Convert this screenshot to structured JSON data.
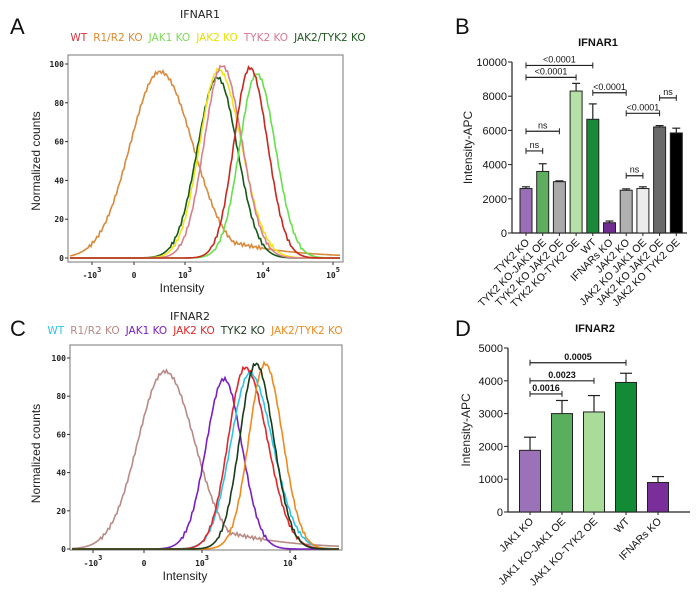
{
  "panels": {
    "a": "A",
    "b": "B",
    "c": "C",
    "d": "D"
  },
  "chart_data": [
    {
      "id": "A",
      "type": "line",
      "title": "IFNAR1",
      "xlabel": "Intensity",
      "ylabel": "Normalized counts",
      "ylim": [
        0,
        100
      ],
      "yticks": [
        "0",
        "20",
        "40",
        "60",
        "80",
        "100"
      ],
      "xticks": [
        {
          "base": "-10",
          "exp": "3"
        },
        {
          "base": "0",
          "exp": ""
        },
        {
          "base": "10",
          "exp": "3"
        },
        {
          "base": "10",
          "exp": "4"
        },
        {
          "base": "10",
          "exp": "5"
        }
      ],
      "x_scale": "biexponential",
      "legend_position": "top",
      "series": [
        {
          "name": "WT",
          "color": "#c8281e",
          "legend_color": "#d9343a",
          "peak_intensity": 6800,
          "peak_count": 98
        },
        {
          "name": "R1/R2 KO",
          "color": "#d98a3a",
          "legend_color": "#e08a2e",
          "peak_intensity": 510,
          "peak_count": 96
        },
        {
          "name": "JAK1 KO",
          "color": "#66e04a",
          "legend_color": "#7ed957",
          "peak_intensity": 8300,
          "peak_count": 95
        },
        {
          "name": "JAK2 KO",
          "color": "#f2e21a",
          "legend_color": "#e8e000",
          "peak_intensity": 2700,
          "peak_count": 97
        },
        {
          "name": "TYK2 KO",
          "color": "#d6808e",
          "legend_color": "#d87a8c",
          "peak_intensity": 3000,
          "peak_count": 99
        },
        {
          "name": "JAK2/TYK2 KO",
          "color": "#165a16",
          "legend_color": "#1f5a1f",
          "peak_intensity": 2600,
          "peak_count": 93
        }
      ]
    },
    {
      "id": "B",
      "type": "bar",
      "title": "IFNAR1",
      "ylabel": "Intensity-APC",
      "ylim": [
        0,
        10000
      ],
      "yticks": [
        "0",
        "2000",
        "4000",
        "6000",
        "8000",
        "10000"
      ],
      "categories": [
        "TYK2 KO",
        "TYK2 KO-JAK1 OE",
        "TYK2 KO JAK2 OE",
        "TYK2 KO-TYK2 OE",
        "WT",
        "IFNARs KO",
        "JAK2 KO",
        "JAK2 KO JAK1 OE",
        "JAK2 KO JAK2 OE",
        "JAK2 KO TYK2 OE"
      ],
      "values": [
        2600,
        3600,
        3000,
        8300,
        6650,
        600,
        2500,
        2600,
        6200,
        5850
      ],
      "errors": [
        100,
        450,
        50,
        450,
        900,
        100,
        80,
        100,
        80,
        280
      ],
      "colors": [
        "#9b6fb8",
        "#5fae5f",
        "#a9a9a9",
        "#b5e0a8",
        "#1a8a3a",
        "#6f2d8f",
        "#b0b0b0",
        "#ececec",
        "#6a6a6a",
        "#000000"
      ],
      "comparisons": [
        {
          "from": 0,
          "to": 4,
          "at": 9800,
          "label": "<0.0001"
        },
        {
          "from": 0,
          "to": 3,
          "at": 9100,
          "label": "<0.0001"
        },
        {
          "from": 0,
          "to": 2,
          "at": 5950,
          "label": "ns"
        },
        {
          "from": 0,
          "to": 1,
          "at": 4800,
          "label": "ns"
        },
        {
          "from": 4,
          "to": 6,
          "at": 8200,
          "label": "<0.0001"
        },
        {
          "from": 6,
          "to": 8,
          "at": 7000,
          "label": "<0.0001"
        },
        {
          "from": 6,
          "to": 7,
          "at": 3350,
          "label": "ns"
        },
        {
          "from": 8,
          "to": 9,
          "at": 7900,
          "label": "ns"
        }
      ]
    },
    {
      "id": "C",
      "type": "line",
      "title": "IFNAR2",
      "xlabel": "Intensity",
      "ylabel": "Normalized counts",
      "ylim": [
        0,
        100
      ],
      "yticks": [
        "0",
        "20",
        "40",
        "60",
        "80",
        "100"
      ],
      "xticks": [
        {
          "base": "-10",
          "exp": "3"
        },
        {
          "base": "0",
          "exp": ""
        },
        {
          "base": "10",
          "exp": "3"
        },
        {
          "base": "10",
          "exp": "4"
        }
      ],
      "x_scale": "biexponential",
      "legend_position": "top",
      "series": [
        {
          "name": "WT",
          "color": "#2ec4e6",
          "legend_color": "#2ec4e6",
          "peak_intensity": 3500,
          "peak_count": 92
        },
        {
          "name": "R1/R2 KO",
          "color": "#b88a86",
          "legend_color": "#b88a86",
          "peak_intensity": 360,
          "peak_count": 93
        },
        {
          "name": "JAK1 KO",
          "color": "#7a1fc4",
          "legend_color": "#7a1fc4",
          "peak_intensity": 1780,
          "peak_count": 89
        },
        {
          "name": "JAK2 KO",
          "color": "#e0282a",
          "legend_color": "#e0282a",
          "peak_intensity": 3100,
          "peak_count": 95
        },
        {
          "name": "TYK2 KO",
          "color": "#1a3a1a",
          "legend_color": "#1f3a1f",
          "peak_intensity": 4100,
          "peak_count": 97
        },
        {
          "name": "JAK2/TYK2 KO",
          "color": "#f08a1e",
          "legend_color": "#f08a1e",
          "peak_intensity": 5200,
          "peak_count": 97
        }
      ]
    },
    {
      "id": "D",
      "type": "bar",
      "title": "IFNAR2",
      "ylabel": "Intensity-APC",
      "ylim": [
        0,
        5000
      ],
      "yticks": [
        "0",
        "1000",
        "2000",
        "3000",
        "4000",
        "5000"
      ],
      "categories": [
        "JAK1 KO",
        "JAK1 KO-JAK1 OE",
        "JAK1 KO-TYK2 OE",
        "WT",
        "IFNARs KO"
      ],
      "values": [
        1880,
        3000,
        3050,
        3950,
        900
      ],
      "errors": [
        400,
        400,
        500,
        280,
        180
      ],
      "colors": [
        "#9b72b8",
        "#5aaf5f",
        "#a8dc98",
        "#138a35",
        "#7a2e9a"
      ],
      "comparisons": [
        {
          "from": 0,
          "to": 1,
          "at": 3600,
          "label": "0.0016"
        },
        {
          "from": 0,
          "to": 2,
          "at": 4000,
          "label": "0.0023"
        },
        {
          "from": 0,
          "to": 3,
          "at": 4550,
          "label": "0.0005"
        }
      ]
    }
  ]
}
